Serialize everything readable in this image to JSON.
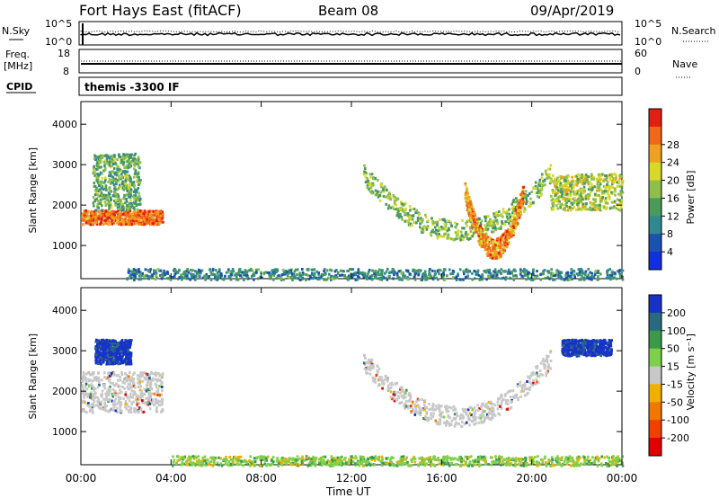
{
  "header": {
    "radar": "Fort Hays East (fitACF)",
    "beam": "Beam 08",
    "date": "09/Apr/2019"
  },
  "small_panels": {
    "nsky_label": "N.Sky",
    "nsearch_label": "N.Search",
    "freq_label_line1": "Freq.",
    "freq_label_line2": "[MHz]",
    "nave_label": "Nave",
    "cpid_label": "CPID",
    "cpid_value": "themis -3300 IF",
    "noise_left_ticks": [
      "10^5",
      "10^0"
    ],
    "noise_right_ticks": [
      "10^5",
      "10^0"
    ],
    "freq_left_ticks": [
      "18",
      "8"
    ],
    "nave_right_ticks": [
      "60",
      "0"
    ]
  },
  "x_axis": {
    "label": "Time UT",
    "ticks": [
      "00:00",
      "04:00",
      "08:00",
      "12:00",
      "16:00",
      "20:00",
      "00:00"
    ]
  },
  "chart_data": [
    {
      "type": "heatmap",
      "title": "",
      "xlabel": "Time UT",
      "ylabel": "Slant Range [km]",
      "x_ticks": [
        "00:00",
        "04:00",
        "08:00",
        "12:00",
        "16:00",
        "20:00",
        "00:00"
      ],
      "y_ticks": [
        1000,
        2000,
        3000,
        4000
      ],
      "ylim": [
        180,
        4560
      ],
      "xlim_hours": [
        0,
        24
      ],
      "colorbar": {
        "label": "Power [dB]",
        "ticks": [
          "4",
          "8",
          "12",
          "16",
          "20",
          "24",
          "28"
        ],
        "colors": [
          "#1030e0",
          "#1a52b0",
          "#2f8a8f",
          "#4a9a5a",
          "#8fbf4a",
          "#d8d82a",
          "#f0a020",
          "#f06818",
          "#e02010"
        ]
      },
      "regions": [
        {
          "name": "early-band",
          "t0": 0.0,
          "t1": 3.6,
          "r0": 1550,
          "r1": 1900,
          "value": 26
        },
        {
          "name": "early-scatter",
          "t0": 0.5,
          "t1": 2.6,
          "r0": 1900,
          "r1": 3300,
          "value": 12
        },
        {
          "name": "arc",
          "t0": 12.5,
          "t1": 20.8,
          "r_mid": 1400,
          "value": 14
        },
        {
          "name": "arc-core",
          "t0": 17.0,
          "t1": 19.6,
          "r_mid": 950,
          "value": 24
        },
        {
          "name": "late-rise",
          "t0": 20.8,
          "t1": 24.0,
          "r0": 1900,
          "r1": 2800,
          "value": 16
        },
        {
          "name": "ground-scatter",
          "t0": 2.0,
          "t1": 24.0,
          "r0": 180,
          "r1": 450,
          "value": 8
        }
      ]
    },
    {
      "type": "heatmap",
      "title": "",
      "xlabel": "Time UT",
      "ylabel": "Slant Range [km]",
      "x_ticks": [
        "00:00",
        "04:00",
        "08:00",
        "12:00",
        "16:00",
        "20:00",
        "00:00"
      ],
      "y_ticks": [
        1000,
        2000,
        3000,
        4000
      ],
      "ylim": [
        180,
        4560
      ],
      "xlim_hours": [
        0,
        24
      ],
      "colorbar": {
        "label": "Velocity [m s⁻¹]",
        "ticks": [
          "200",
          "100",
          "50",
          "15",
          "-15",
          "-50",
          "-100",
          "-200"
        ],
        "colors": [
          "#1832c8",
          "#2a6a80",
          "#3a9a4a",
          "#7ed04a",
          "#c8c8c8",
          "#f0b000",
          "#f07800",
          "#f04000",
          "#e00000"
        ]
      },
      "regions": [
        {
          "name": "early-positive",
          "t0": 0.6,
          "t1": 2.2,
          "r0": 2700,
          "r1": 3300,
          "value": 200
        },
        {
          "name": "early-gray",
          "t0": 0.0,
          "t1": 3.6,
          "r0": 1500,
          "r1": 2500,
          "value": 0
        },
        {
          "name": "arc-gray",
          "t0": 12.5,
          "t1": 20.8,
          "r_mid": 1400,
          "value": 0
        },
        {
          "name": "late-positive",
          "t0": 21.3,
          "t1": 23.5,
          "r0": 2900,
          "r1": 3300,
          "value": 150
        },
        {
          "name": "low-range",
          "t0": 4.0,
          "t1": 24.0,
          "r0": 180,
          "r1": 420,
          "value": 20
        }
      ]
    }
  ]
}
